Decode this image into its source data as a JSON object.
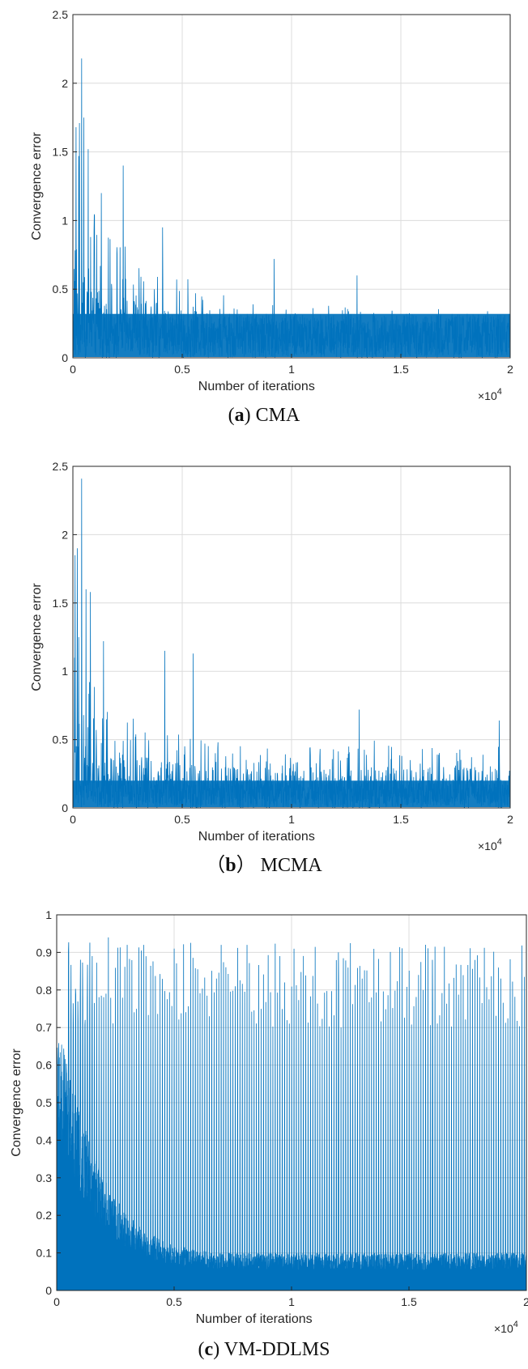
{
  "chart_data": [
    {
      "type": "line",
      "panel_letter": "a",
      "caption": "CMA",
      "caption_style": "paren",
      "xlabel": "Number of iterations",
      "ylabel": "Convergence error",
      "x_scale_exponent": "×10^4",
      "xlim": [
        0,
        2
      ],
      "ylim": [
        0,
        2.5
      ],
      "xticks": [
        "0",
        "0.5",
        "1",
        "1.5",
        "2"
      ],
      "yticks": [
        "0",
        "0.5",
        "1",
        "1.5",
        "2",
        "2.5"
      ],
      "grid": true,
      "line_color": "#0072BD",
      "series": [
        {
          "x_unit": "×10^4 iterations",
          "envelope_x": [
            0,
            0.02,
            0.05,
            0.1,
            0.15,
            0.2,
            0.3,
            0.4,
            0.5,
            0.6,
            0.7,
            0.8,
            0.9,
            1.0,
            1.2,
            1.5,
            1.8,
            2.0
          ],
          "envelope_y": [
            1.3,
            1.5,
            1.4,
            1.1,
            0.9,
            0.85,
            0.75,
            0.65,
            0.6,
            0.55,
            0.5,
            0.45,
            0.42,
            0.4,
            0.38,
            0.36,
            0.35,
            0.35
          ],
          "dense_band": 0.32,
          "peaks": [
            {
              "x": 0.015,
              "y": 1.68
            },
            {
              "x": 0.03,
              "y": 1.71
            },
            {
              "x": 0.04,
              "y": 2.18
            },
            {
              "x": 0.05,
              "y": 1.75
            },
            {
              "x": 0.07,
              "y": 1.52
            },
            {
              "x": 0.13,
              "y": 1.2
            },
            {
              "x": 0.23,
              "y": 1.4
            },
            {
              "x": 0.41,
              "y": 0.95
            },
            {
              "x": 0.92,
              "y": 0.72
            },
            {
              "x": 1.3,
              "y": 0.6
            }
          ]
        }
      ]
    },
    {
      "type": "line",
      "panel_letter": "b",
      "caption": "MCMA",
      "caption_style": "fullwidth",
      "xlabel": "Number of iterations",
      "ylabel": "Convergence error",
      "x_scale_exponent": "×10^4",
      "xlim": [
        0,
        2
      ],
      "ylim": [
        0,
        2.5
      ],
      "xticks": [
        "0",
        "0.5",
        "1",
        "1.5",
        "2"
      ],
      "yticks": [
        "0",
        "0.5",
        "1",
        "1.5",
        "2",
        "2.5"
      ],
      "grid": true,
      "line_color": "#0072BD",
      "series": [
        {
          "x_unit": "×10^4 iterations",
          "envelope_x": [
            0,
            0.02,
            0.05,
            0.1,
            0.15,
            0.2,
            0.3,
            0.4,
            0.5,
            0.6,
            0.8,
            1.0,
            1.2,
            1.5,
            1.8,
            2.0
          ],
          "envelope_y": [
            1.2,
            1.3,
            1.2,
            0.9,
            0.75,
            0.7,
            0.65,
            0.6,
            0.55,
            0.5,
            0.5,
            0.5,
            0.5,
            0.5,
            0.5,
            0.5
          ],
          "dense_band": 0.2,
          "peaks": [
            {
              "x": 0.01,
              "y": 1.85
            },
            {
              "x": 0.02,
              "y": 1.9
            },
            {
              "x": 0.04,
              "y": 2.41
            },
            {
              "x": 0.06,
              "y": 1.6
            },
            {
              "x": 0.08,
              "y": 1.58
            },
            {
              "x": 0.14,
              "y": 1.22
            },
            {
              "x": 0.42,
              "y": 1.15
            },
            {
              "x": 0.55,
              "y": 1.13
            },
            {
              "x": 1.31,
              "y": 0.72
            },
            {
              "x": 1.95,
              "y": 0.64
            }
          ]
        }
      ]
    },
    {
      "type": "line",
      "panel_letter": "c",
      "caption": "VM-DDLMS",
      "caption_style": "paren",
      "xlabel": "Number of iterations",
      "ylabel": "Convergence error",
      "x_scale_exponent": "×10^4",
      "xlim": [
        0,
        2
      ],
      "ylim": [
        0,
        1
      ],
      "xticks": [
        "0",
        "0.5",
        "1",
        "1.5",
        "2"
      ],
      "yticks": [
        "0",
        "0.1",
        "0.2",
        "0.3",
        "0.4",
        "0.5",
        "0.6",
        "0.7",
        "0.8",
        "0.9",
        "1"
      ],
      "grid": true,
      "line_color": "#0072BD",
      "series": [
        {
          "x_unit": "×10^4 iterations",
          "envelope_x": [
            0,
            0.02,
            0.05,
            0.1,
            0.15,
            0.2,
            0.25,
            0.3,
            0.4,
            0.5,
            0.7,
            1.0,
            1.5,
            2.0
          ],
          "envelope_y": [
            0.7,
            0.68,
            0.58,
            0.47,
            0.38,
            0.3,
            0.25,
            0.2,
            0.15,
            0.12,
            0.1,
            0.1,
            0.1,
            0.1
          ],
          "spike_period": 0.01,
          "spike_range": [
            0.7,
            0.94
          ],
          "peaks": [
            {
              "x": 0.22,
              "y": 0.94
            },
            {
              "x": 0.3,
              "y": 0.92
            },
            {
              "x": 0.5,
              "y": 0.91
            },
            {
              "x": 0.95,
              "y": 0.89
            },
            {
              "x": 1.2,
              "y": 0.9
            },
            {
              "x": 1.6,
              "y": 0.88
            }
          ]
        }
      ]
    }
  ]
}
